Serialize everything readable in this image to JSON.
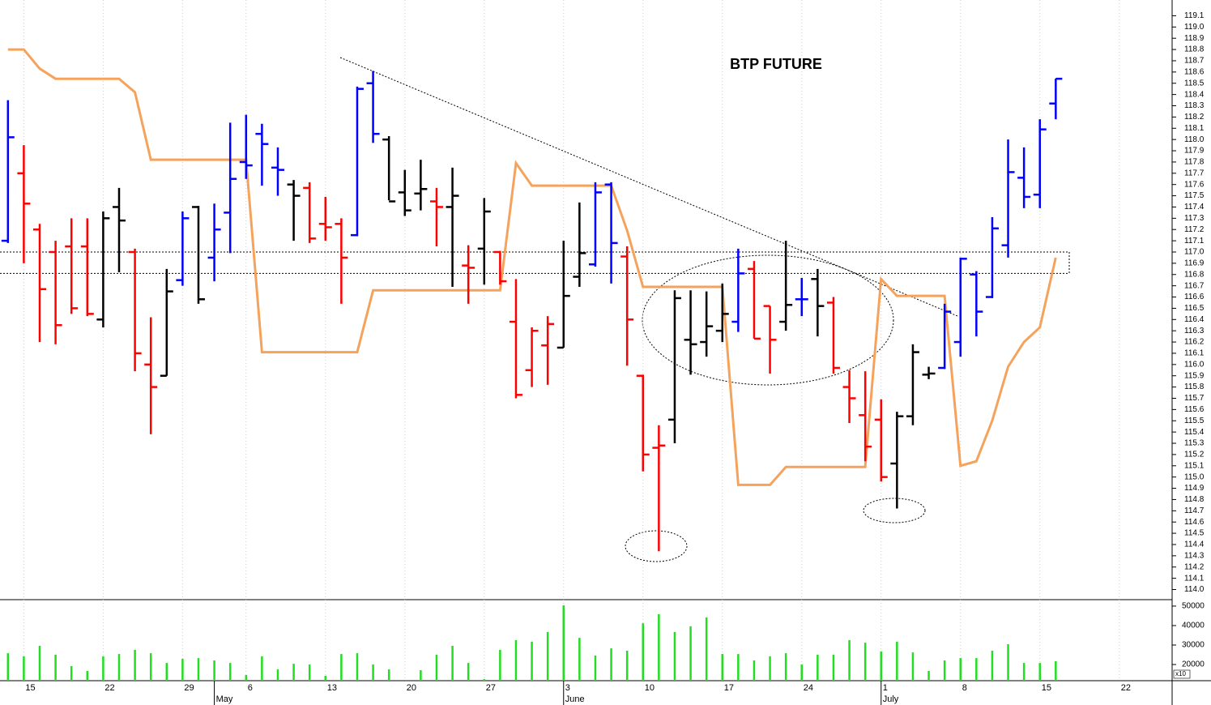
{
  "chart_data": {
    "type": "ohlc",
    "title": "BTP FUTURE",
    "xlim": [
      -0.5,
      73.33
    ],
    "xticks": [
      {
        "value": 1,
        "label": "15"
      },
      {
        "value": 6,
        "label": "22"
      },
      {
        "value": 11,
        "label": "29"
      },
      {
        "value": 15,
        "label": "6"
      },
      {
        "value": 20,
        "label": "13"
      },
      {
        "value": 25,
        "label": "20"
      },
      {
        "value": 30,
        "label": "27"
      },
      {
        "value": 35,
        "label": "3"
      },
      {
        "value": 40,
        "label": "10"
      },
      {
        "value": 45,
        "label": "17"
      },
      {
        "value": 50,
        "label": "24"
      },
      {
        "value": 55,
        "label": "1"
      },
      {
        "value": 60,
        "label": "8"
      },
      {
        "value": 65,
        "label": "15"
      },
      {
        "value": 70,
        "label": "22"
      }
    ],
    "month_ticks": [
      {
        "value": 13,
        "label": "May"
      },
      {
        "value": 35,
        "label": "June"
      },
      {
        "value": 55,
        "label": "July"
      }
    ],
    "ylim": [
      113.91,
      119.24
    ],
    "yticks": [
      {
        "value": 114,
        "label": "114.0"
      },
      114.1,
      114.2,
      114.3,
      114.4,
      114.5,
      114.6,
      114.7,
      114.8,
      114.9,
      {
        "value": 115,
        "label": "115.0"
      },
      115.1,
      115.2,
      115.3,
      115.4,
      115.5,
      115.6,
      115.7,
      115.8,
      115.9,
      {
        "value": 116,
        "label": "116.0"
      },
      116.1,
      116.2,
      116.3,
      116.4,
      116.5,
      116.6,
      116.7,
      116.8,
      116.9,
      {
        "value": 117,
        "label": "117.0"
      },
      117.1,
      117.2,
      117.3,
      117.4,
      117.5,
      117.6,
      117.7,
      117.8,
      117.9,
      {
        "value": 118,
        "label": "118.0"
      },
      118.1,
      118.2,
      118.3,
      118.4,
      118.5,
      118.6,
      118.7,
      118.8,
      118.9,
      {
        "value": 119,
        "label": "119.0"
      },
      119.1
    ],
    "open": [
      117.1,
      117.7,
      117.2,
      117.0,
      117.05,
      117.05,
      116.4,
      117.4,
      117.0,
      116.0,
      115.9,
      116.75,
      117.4,
      116.95,
      117.35,
      117.8,
      118.05,
      117.75,
      117.6,
      117.57,
      117.25,
      117.25,
      117.15,
      118.5,
      118.0,
      117.53,
      117.52,
      117.45,
      117.4,
      116.88,
      117.03,
      117.0,
      116.38,
      115.95,
      116.17,
      116.15,
      116.78,
      116.89,
      117.6,
      116.96,
      115.9,
      115.26,
      115.51,
      116.22,
      116.2,
      116.3,
      116.38,
      116.85,
      116.52,
      116.38,
      116.58,
      116.76,
      116.55,
      115.8,
      115.55,
      115.51,
      115.12,
      115.54,
      115.91,
      115.97,
      116.2,
      116.8,
      116.6,
      117.06,
      117.66,
      117.51,
      118.32
    ],
    "high": [
      118.35,
      117.95,
      117.25,
      117.1,
      117.3,
      117.3,
      117.36,
      117.57,
      117.03,
      116.42,
      116.85,
      117.36,
      117.41,
      117.43,
      118.15,
      118.22,
      118.14,
      117.93,
      117.64,
      117.62,
      117.49,
      117.3,
      118.47,
      118.61,
      118.03,
      117.73,
      117.82,
      117.57,
      117.75,
      117.06,
      117.48,
      117.01,
      116.76,
      116.33,
      116.43,
      117.1,
      117.44,
      117.62,
      117.62,
      117.05,
      115.91,
      115.46,
      116.66,
      116.66,
      116.65,
      116.72,
      117.03,
      116.92,
      116.52,
      117.1,
      116.77,
      116.85,
      116.6,
      115.95,
      115.94,
      115.69,
      115.58,
      116.18,
      115.98,
      116.54,
      116.95,
      116.83,
      117.31,
      118.0,
      117.93,
      118.18,
      118.54
    ],
    "low": [
      117.08,
      116.9,
      116.2,
      116.18,
      116.45,
      116.43,
      116.33,
      116.82,
      115.94,
      115.38,
      115.9,
      116.7,
      116.54,
      116.74,
      116.99,
      117.65,
      117.59,
      117.5,
      117.1,
      117.08,
      117.1,
      116.54,
      117.14,
      117.97,
      117.46,
      117.32,
      117.37,
      117.05,
      116.69,
      116.54,
      116.71,
      116.71,
      115.7,
      115.8,
      115.82,
      116.15,
      116.69,
      116.87,
      116.72,
      115.99,
      115.05,
      114.34,
      115.3,
      115.91,
      116.07,
      116.2,
      116.29,
      116.23,
      115.92,
      116.3,
      116.43,
      116.25,
      115.92,
      115.48,
      115.14,
      114.96,
      114.72,
      115.46,
      115.87,
      115.96,
      116.07,
      116.25,
      116.59,
      116.95,
      117.39,
      117.39,
      118.18
    ],
    "close": [
      118.02,
      117.43,
      116.67,
      116.35,
      116.5,
      116.45,
      117.3,
      117.28,
      116.1,
      115.8,
      116.65,
      117.3,
      116.58,
      117.2,
      117.65,
      117.77,
      117.96,
      117.73,
      117.5,
      117.12,
      117.22,
      116.95,
      118.45,
      118.05,
      117.45,
      117.37,
      117.56,
      117.4,
      117.5,
      116.86,
      117.36,
      116.74,
      115.73,
      116.3,
      116.36,
      116.61,
      116.99,
      117.53,
      117.08,
      116.4,
      115.2,
      115.28,
      116.59,
      116.18,
      116.34,
      116.45,
      116.81,
      116.23,
      116.22,
      116.53,
      116.58,
      116.52,
      115.97,
      115.7,
      115.27,
      115.0,
      115.54,
      116.11,
      115.92,
      116.47,
      116.94,
      116.47,
      117.21,
      117.71,
      117.49,
      118.09,
      118.54
    ],
    "bar_colors": [
      "#0000ff",
      "#ff0000",
      "#ff0000",
      "#ff0000",
      "#ff0000",
      "#ff0000",
      "#000000",
      "#000000",
      "#ff0000",
      "#ff0000",
      "#000000",
      "#0000ff",
      "#000000",
      "#0000ff",
      "#0000ff",
      "#0000ff",
      "#0000ff",
      "#0000ff",
      "#000000",
      "#ff0000",
      "#ff0000",
      "#ff0000",
      "#0000ff",
      "#0000ff",
      "#000000",
      "#000000",
      "#000000",
      "#ff0000",
      "#000000",
      "#ff0000",
      "#000000",
      "#ff0000",
      "#ff0000",
      "#ff0000",
      "#ff0000",
      "#000000",
      "#000000",
      "#0000ff",
      "#0000ff",
      "#ff0000",
      "#ff0000",
      "#ff0000",
      "#000000",
      "#000000",
      "#000000",
      "#000000",
      "#0000ff",
      "#ff0000",
      "#ff0000",
      "#000000",
      "#0000ff",
      "#000000",
      "#ff0000",
      "#ff0000",
      "#ff0000",
      "#ff0000",
      "#000000",
      "#000000",
      "#000000",
      "#0000ff",
      "#0000ff",
      "#0000ff",
      "#0000ff",
      "#0000ff",
      "#0000ff",
      "#0000ff",
      "#0000ff"
    ],
    "line": {
      "color": "#f5a35c",
      "values": [
        118.8,
        118.8,
        118.63,
        118.54,
        118.54,
        118.54,
        118.54,
        118.54,
        118.42,
        117.82,
        117.82,
        117.82,
        117.82,
        117.82,
        117.82,
        117.82,
        116.11,
        116.11,
        116.11,
        116.11,
        116.11,
        116.11,
        116.11,
        116.66,
        116.66,
        116.66,
        116.66,
        116.66,
        116.66,
        116.66,
        116.66,
        116.66,
        117.79,
        117.59,
        117.59,
        117.59,
        117.59,
        117.59,
        117.59,
        117.19,
        116.69,
        116.69,
        116.69,
        116.69,
        116.69,
        116.69,
        114.93,
        114.93,
        114.93,
        115.09,
        115.09,
        115.09,
        115.09,
        115.09,
        115.09,
        116.76,
        116.61,
        116.61,
        116.61,
        116.61,
        115.1,
        115.14,
        115.5,
        115.98,
        116.2,
        116.33,
        116.95
      ]
    },
    "resistance_band": [
      116.81,
      117.0
    ],
    "volume": {
      "color": "#22dd22",
      "ylim": [
        11700,
        53300
      ],
      "yticks": [
        20000,
        30000,
        40000,
        50000
      ],
      "unit_label": "x10",
      "values": [
        25800,
        24200,
        29600,
        25000,
        19200,
        16700,
        24200,
        25400,
        27500,
        25800,
        20800,
        22900,
        23300,
        22100,
        20800,
        14600,
        24200,
        17500,
        20400,
        20000,
        14200,
        25400,
        25800,
        20000,
        17500,
        null,
        17100,
        25000,
        29600,
        20800,
        12500,
        27500,
        32500,
        31700,
        36700,
        50400,
        33700,
        24600,
        28300,
        27100,
        41200,
        45800,
        36700,
        39600,
        44200,
        25400,
        25400,
        22100,
        24200,
        25800,
        20000,
        25000,
        25000,
        32500,
        31200,
        26700,
        31700,
        26200,
        16700,
        22100,
        23300,
        23300,
        27100,
        30400,
        20800,
        20800,
        21700
      ]
    }
  }
}
